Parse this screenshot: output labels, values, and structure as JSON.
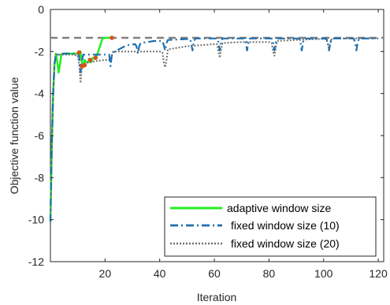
{
  "chart_data": {
    "type": "line",
    "xlabel": "Iteration",
    "ylabel": "Objective function value",
    "xlim": [
      0,
      122
    ],
    "ylim": [
      -12,
      0
    ],
    "xticks": [
      20,
      40,
      60,
      80,
      100,
      120
    ],
    "yticks": [
      0,
      -2,
      -4,
      -6,
      -8,
      -10,
      -12
    ],
    "grid": false,
    "legend_position": "bottom-right",
    "reference_line": {
      "y": -1.35,
      "color": "#808080",
      "style": "dashed"
    },
    "series": [
      {
        "name": "adaptive window size",
        "color": "#22ee22",
        "style": "solid",
        "x": [
          0,
          0.5,
          1,
          1.5,
          2,
          2.5,
          3,
          3.5,
          4,
          5,
          6,
          7,
          8,
          9,
          10,
          10.5,
          11,
          11.5,
          12,
          12.5,
          13,
          14,
          14.5,
          15,
          15.5,
          16,
          17,
          18,
          19,
          20,
          21,
          22,
          22.5,
          23
        ],
        "y": [
          -10.1,
          -6.5,
          -4.0,
          -2.6,
          -2.1,
          -2.5,
          -3.0,
          -2.6,
          -2.15,
          -2.1,
          -2.1,
          -2.1,
          -2.1,
          -2.1,
          -2.1,
          -2.05,
          -2.0,
          -2.5,
          -2.75,
          -2.4,
          -2.5,
          -2.5,
          -2.35,
          -2.5,
          -2.3,
          -2.3,
          -2.2,
          -1.8,
          -1.4,
          -1.35,
          -1.35,
          -1.35,
          -1.35,
          -1.35
        ]
      },
      {
        "name": "fixed window size (10)",
        "color": "#1f6fae",
        "style": "dashdot",
        "x": [
          0,
          0.5,
          1,
          1.5,
          2,
          3,
          4,
          5,
          8,
          10,
          10.5,
          11,
          11.5,
          12,
          13,
          15,
          17,
          20,
          21.5,
          22,
          22.5,
          23,
          25,
          28,
          31,
          31.5,
          32,
          32.5,
          33,
          38,
          41,
          41.5,
          42,
          42.5,
          43,
          48,
          51,
          51.5,
          52,
          52.5,
          53,
          61,
          61.5,
          62,
          62.5,
          63,
          71,
          71.5,
          72,
          72.5,
          73,
          81,
          81.5,
          82,
          82.5,
          83,
          91,
          91.5,
          92,
          92.5,
          93,
          101,
          101.5,
          102,
          102.5,
          103,
          111,
          111.5,
          112,
          112.5,
          113,
          120
        ],
        "y": [
          -10.1,
          -6.5,
          -4.0,
          -2.6,
          -2.15,
          -2.15,
          -2.1,
          -2.1,
          -2.1,
          -2.1,
          -2.2,
          -3.0,
          -2.5,
          -2.15,
          -2.15,
          -2.15,
          -2.15,
          -2.15,
          -2.15,
          -2.7,
          -2.15,
          -2.05,
          -1.9,
          -1.7,
          -1.65,
          -1.75,
          -2.1,
          -1.75,
          -1.6,
          -1.5,
          -1.5,
          -1.7,
          -1.95,
          -1.6,
          -1.45,
          -1.42,
          -1.4,
          -1.55,
          -1.95,
          -1.55,
          -1.38,
          -1.38,
          -1.55,
          -1.95,
          -1.55,
          -1.38,
          -1.38,
          -1.55,
          -1.95,
          -1.55,
          -1.38,
          -1.38,
          -1.55,
          -1.95,
          -1.55,
          -1.38,
          -1.38,
          -1.55,
          -1.95,
          -1.55,
          -1.38,
          -1.38,
          -1.55,
          -1.95,
          -1.55,
          -1.38,
          -1.38,
          -1.55,
          -1.95,
          -1.55,
          -1.38,
          -1.38
        ]
      },
      {
        "name": "fixed window size (20)",
        "color": "#707070",
        "style": "dotted",
        "x": [
          0,
          0.5,
          1,
          1.5,
          2,
          3,
          5,
          8,
          10,
          10.5,
          11,
          11.5,
          12,
          13,
          15,
          17,
          20,
          21,
          22,
          22.5,
          23,
          25,
          30,
          35,
          40,
          41,
          41.5,
          42,
          42.5,
          43,
          50,
          60,
          61,
          61.5,
          62,
          62.5,
          63,
          70,
          80,
          81,
          81.5,
          82,
          82.5,
          83,
          90,
          100,
          101,
          101.5,
          102,
          102.5,
          103,
          110,
          120
        ],
        "y": [
          -10.1,
          -6.5,
          -4.0,
          -2.6,
          -2.15,
          -2.15,
          -2.15,
          -2.15,
          -2.2,
          -2.6,
          -3.5,
          -2.8,
          -2.6,
          -2.55,
          -2.5,
          -2.45,
          -2.4,
          -2.4,
          -2.4,
          -2.2,
          -2.0,
          -2.0,
          -2.0,
          -2.0,
          -2.0,
          -2.05,
          -2.5,
          -2.75,
          -2.4,
          -1.9,
          -1.75,
          -1.65,
          -1.65,
          -2.0,
          -2.3,
          -1.9,
          -1.6,
          -1.55,
          -1.55,
          -1.6,
          -2.0,
          -2.2,
          -1.8,
          -1.5,
          -1.45,
          -1.4,
          -1.42,
          -1.6,
          -1.9,
          -1.6,
          -1.38,
          -1.38,
          -1.38
        ]
      }
    ],
    "markers": {
      "color": "#d95319",
      "points": [
        [
          10.5,
          -2.05
        ],
        [
          11.5,
          -2.7
        ],
        [
          12.5,
          -2.65
        ],
        [
          14.5,
          -2.4
        ],
        [
          16.5,
          -2.3
        ],
        [
          22.5,
          -1.35
        ]
      ]
    }
  }
}
